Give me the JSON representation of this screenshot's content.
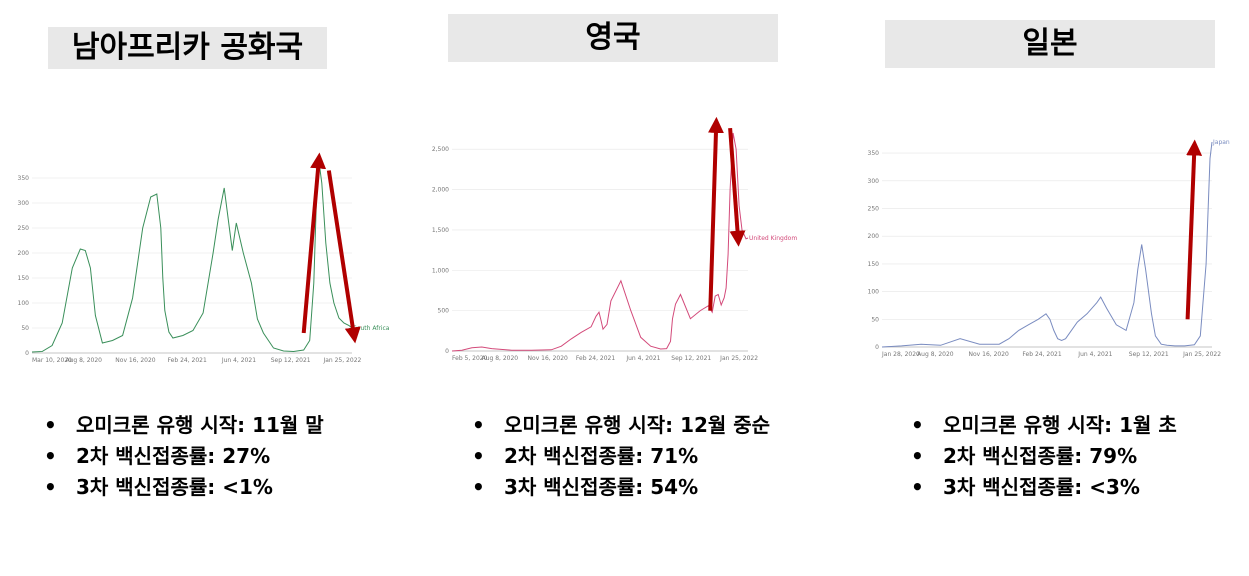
{
  "chart_data": [
    {
      "type": "line",
      "title": "남아프리카 공화국",
      "color": "#3a8f5a",
      "series": [
        {
          "name": "South Africa",
          "x": [
            0,
            10,
            20,
            30,
            40,
            48,
            53,
            58,
            63,
            70,
            80,
            90,
            100,
            110,
            118,
            124,
            128,
            130,
            132,
            136,
            140,
            150,
            160,
            170,
            180,
            185,
            191,
            195,
            199,
            203,
            210,
            218,
            224,
            230,
            240,
            250,
            260,
            270,
            276,
            280,
            283,
            285,
            288,
            292,
            296,
            300,
            305,
            310,
            315,
            318
          ],
          "values": [
            2,
            3,
            15,
            60,
            170,
            208,
            205,
            170,
            75,
            20,
            25,
            35,
            110,
            250,
            312,
            318,
            250,
            150,
            85,
            42,
            30,
            35,
            45,
            80,
            200,
            268,
            330,
            268,
            205,
            260,
            200,
            140,
            68,
            40,
            10,
            4,
            3,
            6,
            25,
            140,
            330,
            385,
            340,
            220,
            140,
            100,
            70,
            60,
            55,
            50
          ]
        }
      ],
      "xtick_labels": [
        "Mar 10, 2020",
        "Aug 8, 2020",
        "Nov 16, 2020",
        "Feb 24, 2021",
        "Jun 4, 2021",
        "Sep 12, 2021",
        "Jan 25, 2022"
      ],
      "ytick_labels": [
        "0",
        "50",
        "100",
        "150",
        "200",
        "250",
        "300",
        "350"
      ],
      "ylim": [
        0,
        390
      ],
      "xlim": [
        0,
        318
      ],
      "arrows": [
        {
          "direction": "up",
          "from": [
            270,
            40
          ],
          "to": [
            285,
            385
          ]
        },
        {
          "direction": "down",
          "from": [
            295,
            365
          ],
          "to": [
            320,
            35
          ]
        }
      ]
    },
    {
      "type": "line",
      "title": "영국",
      "color": "#d34a7a",
      "series": [
        {
          "name": "United Kingdom",
          "x": [
            0,
            10,
            20,
            30,
            40,
            60,
            80,
            100,
            110,
            120,
            130,
            140,
            145,
            148,
            150,
            152,
            156,
            160,
            170,
            180,
            190,
            200,
            210,
            216,
            220,
            222,
            225,
            230,
            240,
            250,
            258,
            262,
            265,
            268,
            271,
            274,
            276,
            278,
            280,
            283,
            286,
            289,
            292,
            296,
            298
          ],
          "values": [
            0,
            10,
            40,
            50,
            30,
            10,
            10,
            15,
            60,
            150,
            230,
            300,
            430,
            480,
            380,
            270,
            330,
            620,
            870,
            500,
            170,
            60,
            25,
            30,
            120,
            400,
            580,
            700,
            400,
            500,
            560,
            480,
            680,
            700,
            570,
            660,
            780,
            1200,
            2000,
            2700,
            2500,
            1800,
            1500,
            1390,
            1400
          ]
        }
      ],
      "xtick_labels": [
        "Feb 5, 2020",
        "Aug 8, 2020",
        "Nov 16, 2020",
        "Feb 24, 2021",
        "Jun 4, 2021",
        "Sep 12, 2021",
        "Jan 25, 2022"
      ],
      "ytick_labels": [
        "0",
        "500",
        "1,000",
        "1,500",
        "2,000",
        "2,500"
      ],
      "ylim": [
        0,
        2700
      ],
      "xlim": [
        0,
        298
      ],
      "arrows": [
        {
          "direction": "up",
          "from": [
            260,
            500
          ],
          "to": [
            266,
            2800
          ]
        },
        {
          "direction": "down",
          "from": [
            280,
            2760
          ],
          "to": [
            288,
            1390
          ]
        }
      ]
    },
    {
      "type": "line",
      "title": "일본",
      "color": "#7a8cc0",
      "series": [
        {
          "name": "Japan",
          "x": [
            0,
            20,
            40,
            60,
            80,
            100,
            120,
            130,
            140,
            150,
            160,
            168,
            172,
            176,
            180,
            184,
            188,
            200,
            210,
            220,
            224,
            230,
            240,
            250,
            258,
            262,
            266,
            270,
            276,
            280,
            286,
            292,
            300,
            310,
            320,
            326,
            332,
            336,
            338
          ],
          "values": [
            0,
            2,
            5,
            3,
            15,
            5,
            5,
            15,
            30,
            40,
            50,
            60,
            50,
            30,
            15,
            12,
            15,
            45,
            60,
            80,
            90,
            70,
            40,
            30,
            80,
            140,
            185,
            140,
            60,
            20,
            5,
            3,
            2,
            2,
            4,
            20,
            150,
            340,
            370
          ]
        }
      ],
      "xtick_labels": [
        "Jan 28, 2020",
        "Aug 8, 2020",
        "Nov 16, 2020",
        "Feb 24, 2021",
        "Jun 4, 2021",
        "Sep 12, 2021",
        "Jan 25, 2022"
      ],
      "ytick_labels": [
        "0",
        "50",
        "100",
        "150",
        "200",
        "250",
        "300",
        "350"
      ],
      "ylim": [
        0,
        370
      ],
      "xlim": [
        0,
        338
      ],
      "arrows": [
        {
          "direction": "up",
          "from": [
            313,
            50
          ],
          "to": [
            320,
            360
          ]
        }
      ]
    }
  ],
  "panels": [
    {
      "title": "남아프리카 공화국",
      "label": "South Africa",
      "bullets": [
        "오미크론 유행 시작: 11월 말",
        "2차 백신접종률: 27%",
        "3차 백신접종률: <1%"
      ]
    },
    {
      "title": "영국",
      "label": "United Kingdom",
      "bullets": [
        "오미크론 유행 시작: 12월 중순",
        "2차 백신접종률: 71%",
        "3차 백신접종률: 54%"
      ]
    },
    {
      "title": "일본",
      "label": "Japan",
      "bullets": [
        "오미크론 유행 시작: 1월 초",
        "2차 백신접종률: 79%",
        "3차 백신접종률: <3%"
      ]
    }
  ],
  "colors": {
    "arrow": "#b00000",
    "axis": "#999999"
  }
}
